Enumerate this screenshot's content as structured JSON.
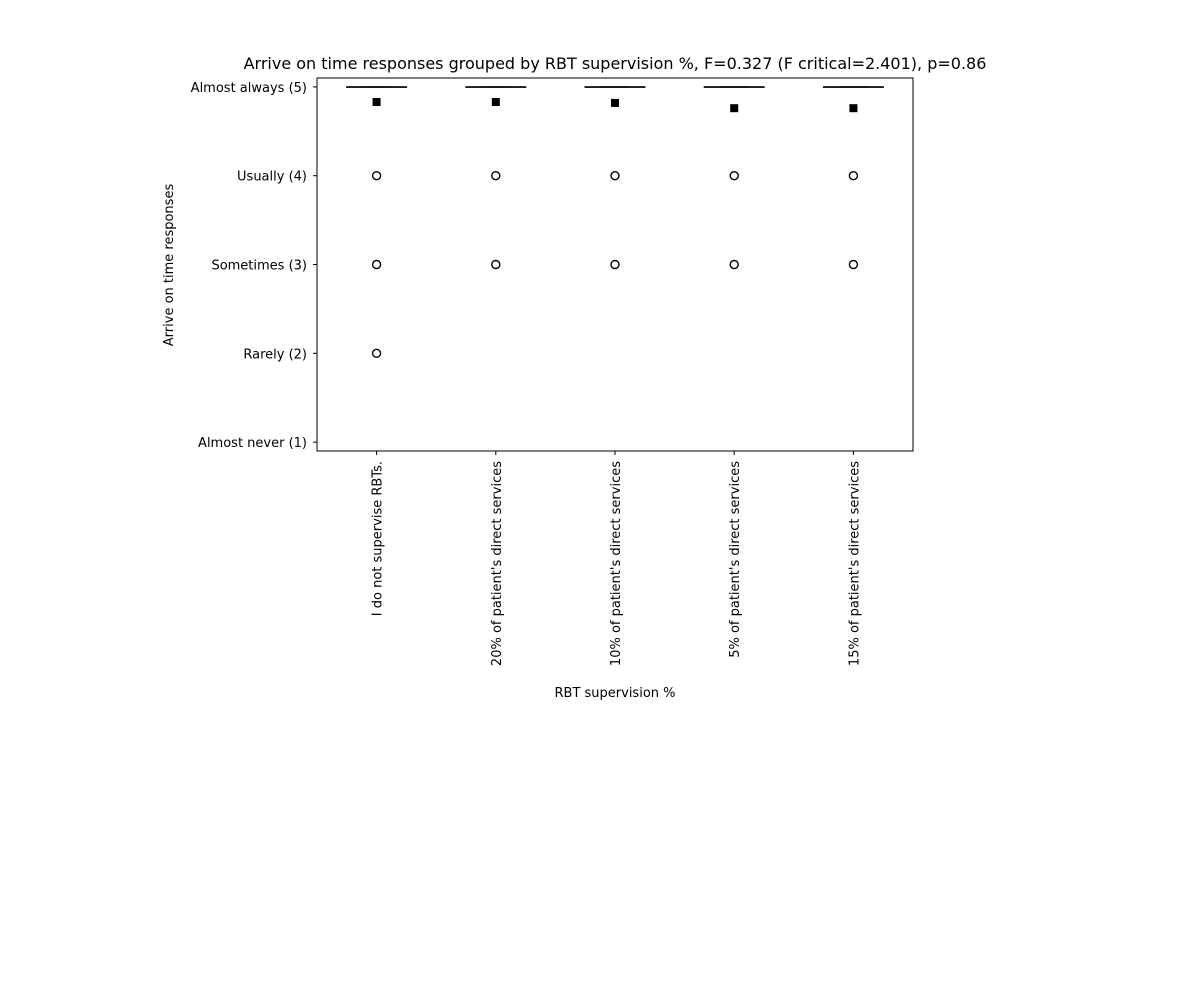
{
  "chart_data": {
    "type": "box",
    "title": "Arrive on time responses grouped by RBT supervision %, F=0.327 (F critical=2.401), p=0.86",
    "xlabel": "RBT supervision %",
    "ylabel": "Arrive on time responses",
    "ylim": [
      0.9,
      5.1
    ],
    "yticks": [
      {
        "value": 1,
        "label": "Almost never (1)"
      },
      {
        "value": 2,
        "label": "Rarely (2)"
      },
      {
        "value": 3,
        "label": "Sometimes (3)"
      },
      {
        "value": 4,
        "label": "Usually (4)"
      },
      {
        "value": 5,
        "label": "Almost always (5)"
      }
    ],
    "categories": [
      "I do not supervise RBTs.",
      "20% of patient's direct services",
      "10% of patient's direct services",
      "5% of patient's direct services",
      "15% of patient's direct services"
    ],
    "boxes": [
      {
        "median": 5,
        "q1": 5,
        "q3": 5,
        "whisker_low": 5,
        "whisker_high": 5,
        "mean": 4.83,
        "outliers": [
          4,
          3,
          2
        ]
      },
      {
        "median": 5,
        "q1": 5,
        "q3": 5,
        "whisker_low": 5,
        "whisker_high": 5,
        "mean": 4.83,
        "outliers": [
          4,
          3
        ]
      },
      {
        "median": 5,
        "q1": 5,
        "q3": 5,
        "whisker_low": 5,
        "whisker_high": 5,
        "mean": 4.82,
        "outliers": [
          4,
          3
        ]
      },
      {
        "median": 5,
        "q1": 5,
        "q3": 5,
        "whisker_low": 5,
        "whisker_high": 5,
        "mean": 4.76,
        "outliers": [
          4,
          3
        ]
      },
      {
        "median": 5,
        "q1": 5,
        "q3": 5,
        "whisker_low": 5,
        "whisker_high": 5,
        "mean": 4.76,
        "outliers": [
          4,
          3
        ]
      }
    ],
    "grid": false,
    "legend": "none"
  }
}
